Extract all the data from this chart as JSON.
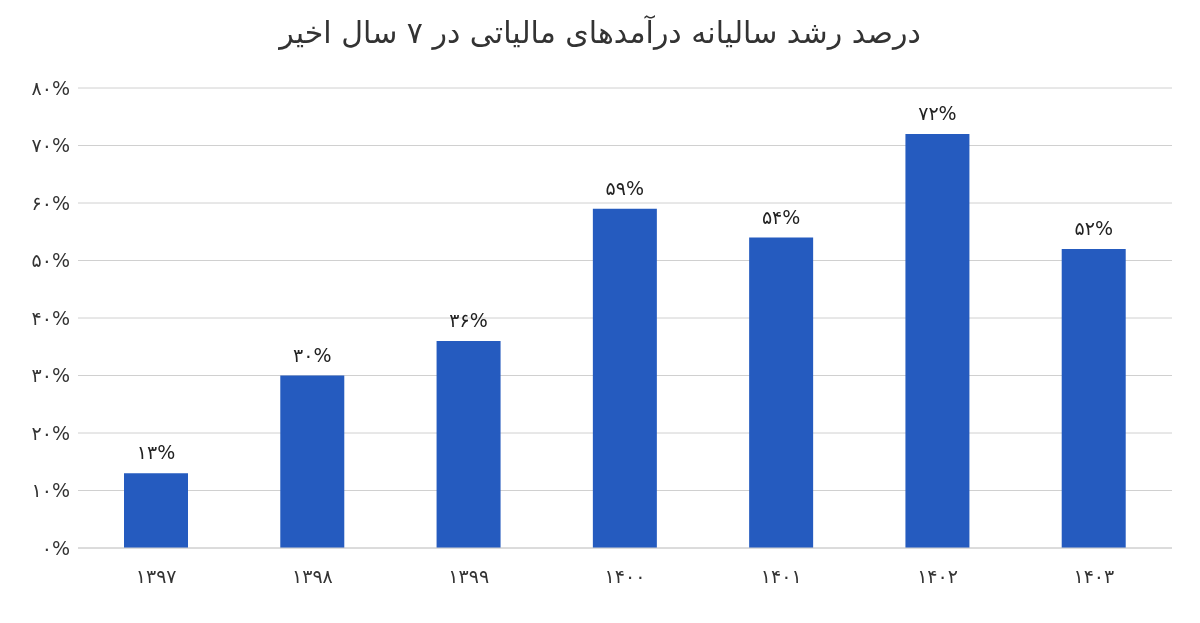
{
  "chart_data": {
    "type": "bar",
    "title": "درصد رشد سالیانه درآمدهای مالیاتی  در ۷ سال اخیر",
    "categories": [
      "۱۳۹۷",
      "۱۳۹۸",
      "۱۳۹۹",
      "۱۴۰۰",
      "۱۴۰۱",
      "۱۴۰۲",
      "۱۴۰۳"
    ],
    "values": [
      13,
      30,
      36,
      59,
      54,
      72,
      52
    ],
    "value_labels": [
      "۱۳%",
      "۳۰%",
      "۳۶%",
      "۵۹%",
      "۵۴%",
      "۷۲%",
      "۵۲%"
    ],
    "color": "#255bbf",
    "ylim": [
      0,
      80
    ],
    "yticks": [
      {
        "value": 0,
        "label": "۰%"
      },
      {
        "value": 10,
        "label": "۱۰%"
      },
      {
        "value": 20,
        "label": "۲۰%"
      },
      {
        "value": 30,
        "label": "۳۰%"
      },
      {
        "value": 40,
        "label": "۴۰%"
      },
      {
        "value": 50,
        "label": "۵۰%"
      },
      {
        "value": 60,
        "label": "۶۰%"
      },
      {
        "value": 70,
        "label": "۷۰%"
      },
      {
        "value": 80,
        "label": "۸۰%"
      }
    ],
    "grid": "y"
  }
}
